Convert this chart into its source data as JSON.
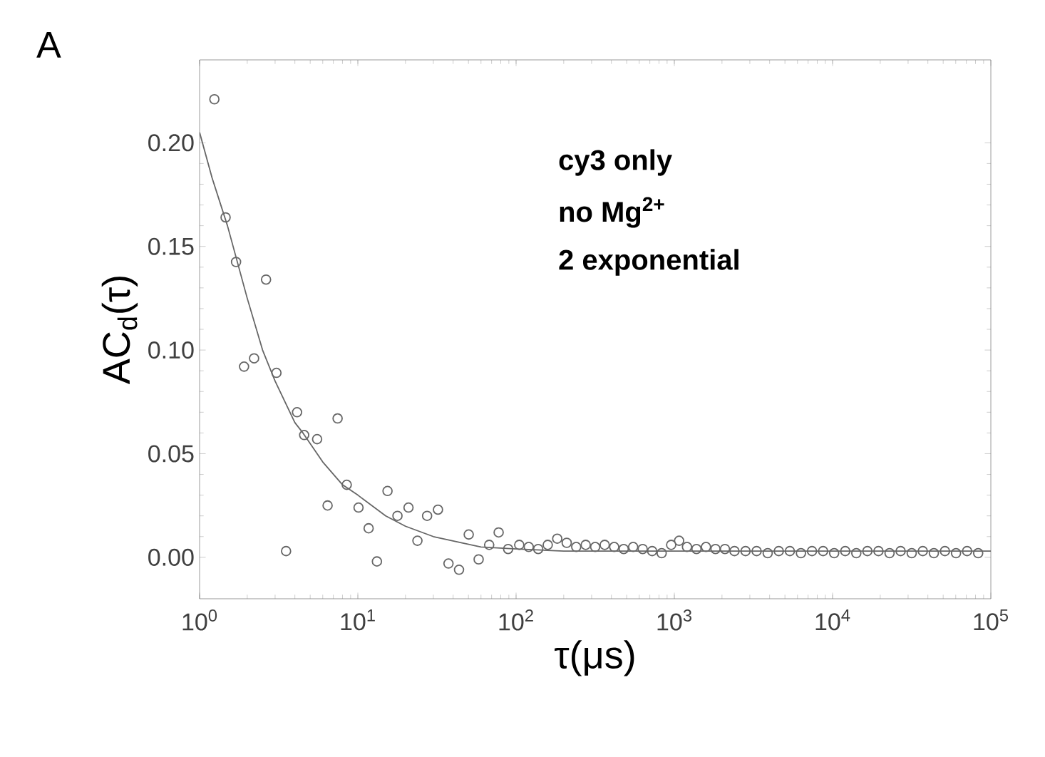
{
  "chart_data": {
    "type": "scatter",
    "xlabel": "τ(μs)",
    "ylabel": "AC$_{d}$(τ)",
    "annotations": [
      "A",
      "cy3 only",
      "no Mg$^{2+}$",
      "2 exponential"
    ],
    "log": "x",
    "xlim": [
      1,
      100000
    ],
    "ylim": [
      -0.02,
      0.24
    ],
    "xticks": [
      {
        "value": 1,
        "label": "10$^{0}$"
      },
      {
        "value": 10,
        "label": "10$^{1}$"
      },
      {
        "value": 100,
        "label": "10$^{2}$"
      },
      {
        "value": 1000,
        "label": "10$^{3}$"
      },
      {
        "value": 10000,
        "label": "10$^{4}$"
      },
      {
        "value": 100000,
        "label": "10$^{5}$"
      }
    ],
    "yticks": [
      {
        "value": 0,
        "label": "0.00"
      },
      {
        "value": 0.05,
        "label": "0.05"
      },
      {
        "value": 0.1,
        "label": "0.10"
      },
      {
        "value": 0.15,
        "label": "0.15"
      },
      {
        "value": 0.2,
        "label": "0.20"
      }
    ],
    "series": [
      {
        "marker": "circle",
        "color": "#666666",
        "x": [
          1.24,
          1.46,
          1.7,
          2.63,
          1.91,
          2.21,
          3.06,
          3.52,
          4.13,
          4.58,
          5.53,
          7.45,
          6.44,
          8.51,
          10.1,
          11.7,
          13.2,
          15.4,
          17.8,
          20.9,
          23.8,
          27.4,
          32.1,
          37.4,
          43.6,
          50.2,
          58,
          67.6,
          77.6,
          89.1,
          104.7,
          120.2,
          138,
          158.5,
          182,
          208.9,
          239.9,
          275.4,
          316.2,
          363.1,
          416.9,
          478.6,
          549.5,
          631,
          724.4,
          831.8,
          955,
          1072,
          1202,
          1380,
          1585,
          1820,
          2089,
          2399,
          2818,
          3311,
          3890,
          4571,
          5370,
          6310,
          7413,
          8710,
          10233,
          12023,
          14125,
          16596,
          19498,
          22909,
          26915,
          31623,
          37154,
          43652,
          51286,
          60256,
          70795,
          83176
        ],
        "values": [
          0.221,
          0.164,
          0.1425,
          0.134,
          0.092,
          0.096,
          0.089,
          0.003,
          0.07,
          0.059,
          0.057,
          0.067,
          0.025,
          0.035,
          0.024,
          0.014,
          -0.002,
          0.032,
          0.02,
          0.024,
          0.008,
          0.02,
          0.023,
          -0.003,
          -0.006,
          0.011,
          -0.001,
          0.006,
          0.012,
          0.004,
          0.006,
          0.005,
          0.004,
          0.006,
          0.009,
          0.007,
          0.005,
          0.006,
          0.005,
          0.006,
          0.005,
          0.004,
          0.005,
          0.004,
          0.003,
          0.002,
          0.006,
          0.008,
          0.005,
          0.004,
          0.005,
          0.004,
          0.004,
          0.003,
          0.003,
          0.003,
          0.002,
          0.003,
          0.003,
          0.002,
          0.003,
          0.003,
          0.002,
          0.003,
          0.002,
          0.003,
          0.003,
          0.002,
          0.003,
          0.002,
          0.003,
          0.002,
          0.003,
          0.002,
          0.003,
          0.002
        ]
      },
      {
        "type": "line",
        "color": "#666666",
        "x": [
          1,
          1.2,
          1.5,
          2,
          2.5,
          3,
          4,
          4.5,
          6,
          8,
          10,
          15,
          20,
          30,
          45,
          60,
          100,
          200,
          1000,
          10000,
          100000
        ],
        "values": [
          0.205,
          0.183,
          0.16,
          0.125,
          0.1,
          0.085,
          0.065,
          0.06,
          0.046,
          0.035,
          0.03,
          0.02,
          0.015,
          0.01,
          0.007,
          0.005,
          0.004,
          0.003,
          0.003,
          0.003,
          0.003
        ]
      }
    ]
  }
}
